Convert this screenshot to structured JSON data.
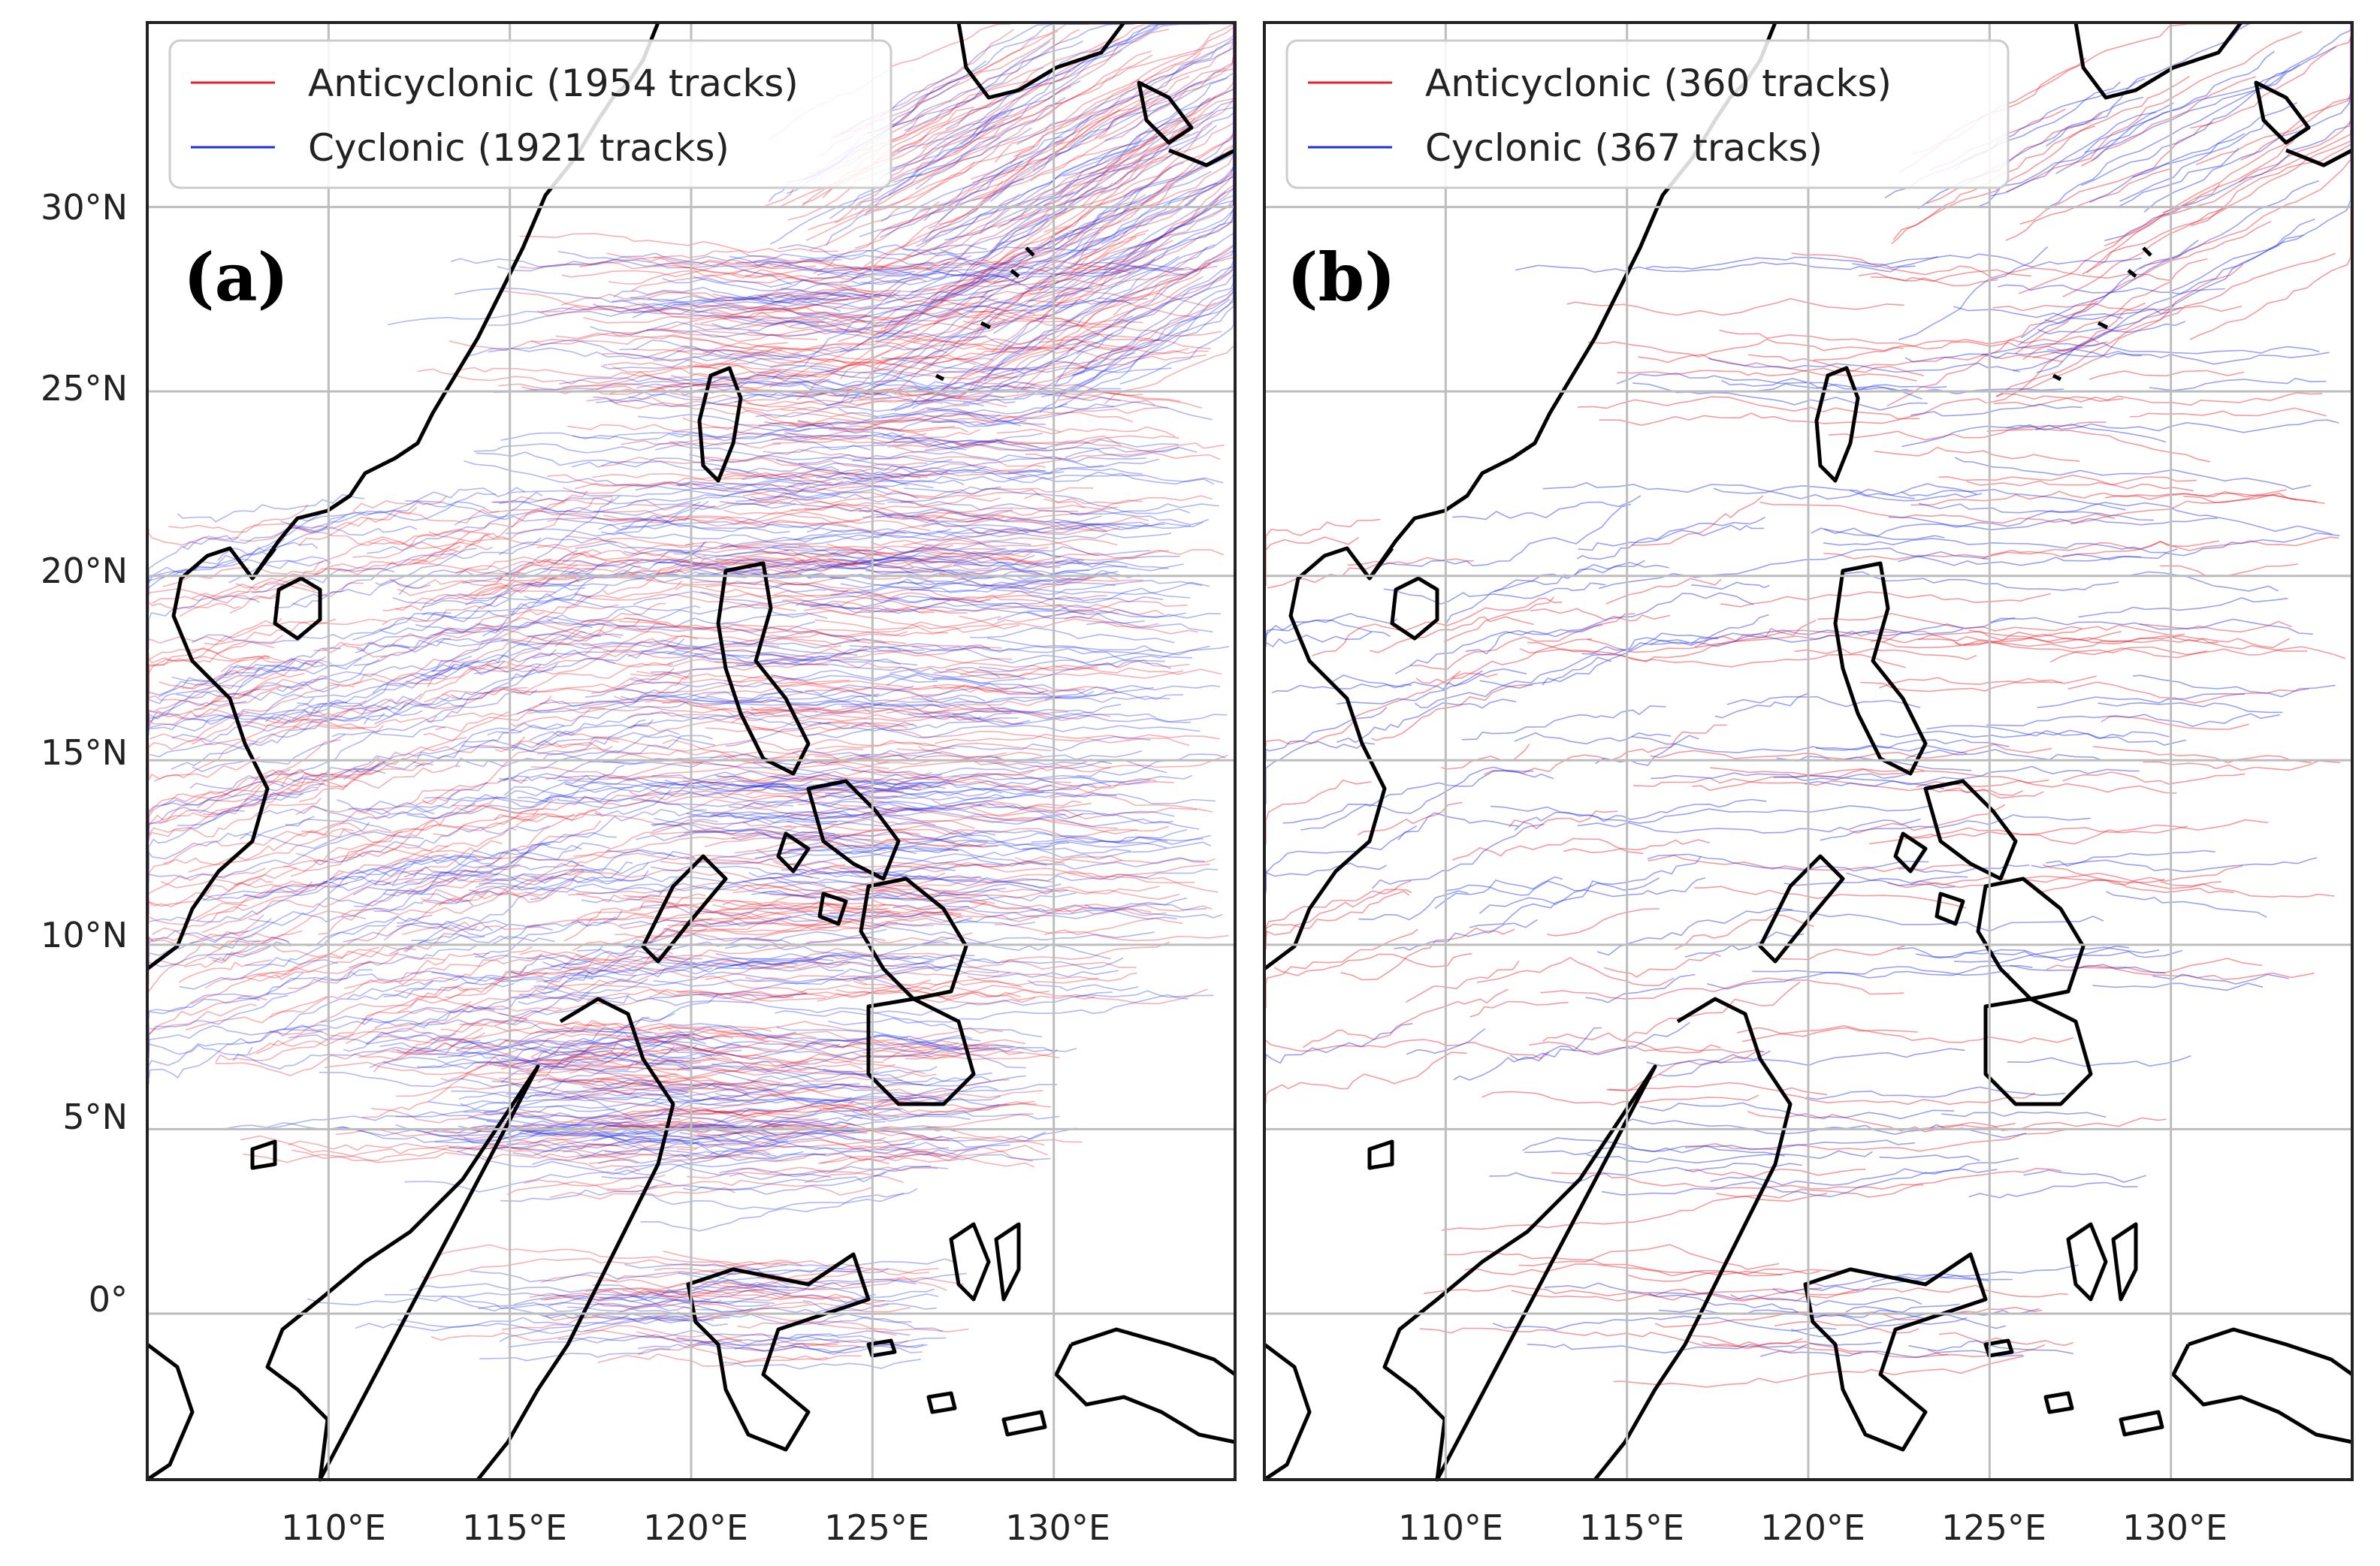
{
  "figure": {
    "colors": {
      "anticyclonic": "#e8202a",
      "cyclonic": "#1f2ee6",
      "coastline": "#000000",
      "grid": "#bdbdbd",
      "frame": "#222222"
    },
    "lat_tick_labels": [
      "30°N",
      "25°N",
      "20°N",
      "15°N",
      "10°N",
      "5°N",
      "0°"
    ],
    "lon_tick_labels": [
      "110°E",
      "115°E",
      "120°E",
      "125°E",
      "130°E"
    ]
  },
  "chart_data": [
    {
      "type": "map-tracks",
      "panel_label": "(a)",
      "legend": {
        "placement": "top-left",
        "entries": [
          {
            "label": "Anticyclonic (1954 tracks)",
            "color": "#e8202a"
          },
          {
            "label": "Cyclonic (1921 tracks)",
            "color": "#1f2ee6"
          }
        ]
      },
      "xlim": [
        105,
        135
      ],
      "ylim": [
        -4.5,
        35
      ],
      "x_ticks": [
        110,
        115,
        120,
        125,
        130
      ],
      "y_ticks": [
        30,
        25,
        20,
        15,
        10,
        5,
        0
      ],
      "grid": true,
      "series": [
        {
          "name": "Anticyclonic (1954 tracks)",
          "count": 1954
        },
        {
          "name": "Cyclonic (1921 tracks)",
          "count": 1921
        }
      ]
    },
    {
      "type": "map-tracks",
      "panel_label": "(b)",
      "legend": {
        "placement": "top-left",
        "entries": [
          {
            "label": "Anticyclonic (360 tracks)",
            "color": "#e8202a"
          },
          {
            "label": "Cyclonic (367 tracks)",
            "color": "#1f2ee6"
          }
        ]
      },
      "xlim": [
        105,
        135
      ],
      "ylim": [
        -4.5,
        35
      ],
      "x_ticks": [
        110,
        115,
        120,
        125,
        130
      ],
      "y_ticks": [
        30,
        25,
        20,
        15,
        10,
        5,
        0
      ],
      "grid": true,
      "series": [
        {
          "name": "Anticyclonic (360 tracks)",
          "count": 360
        },
        {
          "name": "Cyclonic (367 tracks)",
          "count": 367
        }
      ]
    }
  ]
}
